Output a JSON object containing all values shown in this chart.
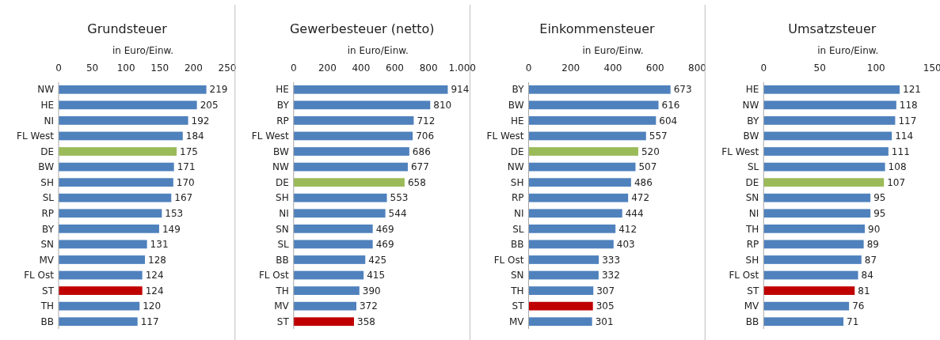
{
  "chart_data": [
    {
      "type": "bar",
      "orientation": "horizontal",
      "title": "Grundsteuer",
      "xlabel": "in Euro/Einw.",
      "categories": [
        "NW",
        "HE",
        "NI",
        "FL West",
        "DE",
        "BW",
        "SH",
        "SL",
        "RP",
        "BY",
        "SN",
        "MV",
        "FL Ost",
        "ST",
        "TH",
        "BB"
      ],
      "values": [
        219,
        205,
        192,
        184,
        175,
        171,
        170,
        167,
        153,
        149,
        131,
        128,
        124,
        124,
        120,
        117
      ],
      "colors": [
        "#4f81bd",
        "#4f81bd",
        "#4f81bd",
        "#4f81bd",
        "#9bbb59",
        "#4f81bd",
        "#4f81bd",
        "#4f81bd",
        "#4f81bd",
        "#4f81bd",
        "#4f81bd",
        "#4f81bd",
        "#4f81bd",
        "#c00000",
        "#4f81bd",
        "#4f81bd"
      ],
      "xlim": [
        0,
        250
      ],
      "xticks": [
        0,
        50,
        100,
        150,
        200,
        250
      ],
      "data_labels": true
    },
    {
      "type": "bar",
      "orientation": "horizontal",
      "title": "Gewerbesteuer (netto)",
      "xlabel": "in Euro/Einw.",
      "categories": [
        "HE",
        "BY",
        "RP",
        "FL West",
        "BW",
        "NW",
        "DE",
        "SH",
        "NI",
        "SN",
        "SL",
        "BB",
        "FL Ost",
        "TH",
        "MV",
        "ST"
      ],
      "values": [
        914,
        810,
        712,
        706,
        686,
        677,
        658,
        553,
        544,
        469,
        469,
        425,
        415,
        390,
        372,
        358
      ],
      "colors": [
        "#4f81bd",
        "#4f81bd",
        "#4f81bd",
        "#4f81bd",
        "#4f81bd",
        "#4f81bd",
        "#9bbb59",
        "#4f81bd",
        "#4f81bd",
        "#4f81bd",
        "#4f81bd",
        "#4f81bd",
        "#4f81bd",
        "#4f81bd",
        "#4f81bd",
        "#c00000"
      ],
      "xlim": [
        0,
        1000
      ],
      "xticks": [
        0,
        200,
        400,
        600,
        800,
        {
          "value": 1000,
          "label": "1.000"
        }
      ],
      "data_labels": true
    },
    {
      "type": "bar",
      "orientation": "horizontal",
      "title": "Einkommensteuer",
      "xlabel": "in Euro/Einw.",
      "categories": [
        "BY",
        "BW",
        "HE",
        "FL West",
        "DE",
        "NW",
        "SH",
        "RP",
        "NI",
        "SL",
        "BB",
        "FL Ost",
        "SN",
        "TH",
        "ST",
        "MV"
      ],
      "values": [
        673,
        616,
        604,
        557,
        520,
        507,
        486,
        472,
        444,
        412,
        403,
        333,
        332,
        307,
        305,
        301
      ],
      "colors": [
        "#4f81bd",
        "#4f81bd",
        "#4f81bd",
        "#4f81bd",
        "#9bbb59",
        "#4f81bd",
        "#4f81bd",
        "#4f81bd",
        "#4f81bd",
        "#4f81bd",
        "#4f81bd",
        "#4f81bd",
        "#4f81bd",
        "#4f81bd",
        "#c00000",
        "#4f81bd"
      ],
      "xlim": [
        0,
        800
      ],
      "xticks": [
        0,
        200,
        400,
        600,
        800
      ],
      "data_labels": true
    },
    {
      "type": "bar",
      "orientation": "horizontal",
      "title": "Umsatzsteuer",
      "xlabel": "in Euro/Einw.",
      "categories": [
        "HE",
        "NW",
        "BY",
        "BW",
        "FL West",
        "SL",
        "DE",
        "SN",
        "NI",
        "TH",
        "RP",
        "SH",
        "FL Ost",
        "ST",
        "MV",
        "BB"
      ],
      "values": [
        121,
        118,
        117,
        114,
        111,
        108,
        107,
        95,
        95,
        90,
        89,
        87,
        84,
        81,
        76,
        71
      ],
      "colors": [
        "#4f81bd",
        "#4f81bd",
        "#4f81bd",
        "#4f81bd",
        "#4f81bd",
        "#4f81bd",
        "#9bbb59",
        "#4f81bd",
        "#4f81bd",
        "#4f81bd",
        "#4f81bd",
        "#4f81bd",
        "#4f81bd",
        "#c00000",
        "#4f81bd",
        "#4f81bd"
      ],
      "xlim": [
        0,
        150
      ],
      "xticks": [
        0,
        50,
        100,
        150
      ],
      "data_labels": true
    }
  ]
}
